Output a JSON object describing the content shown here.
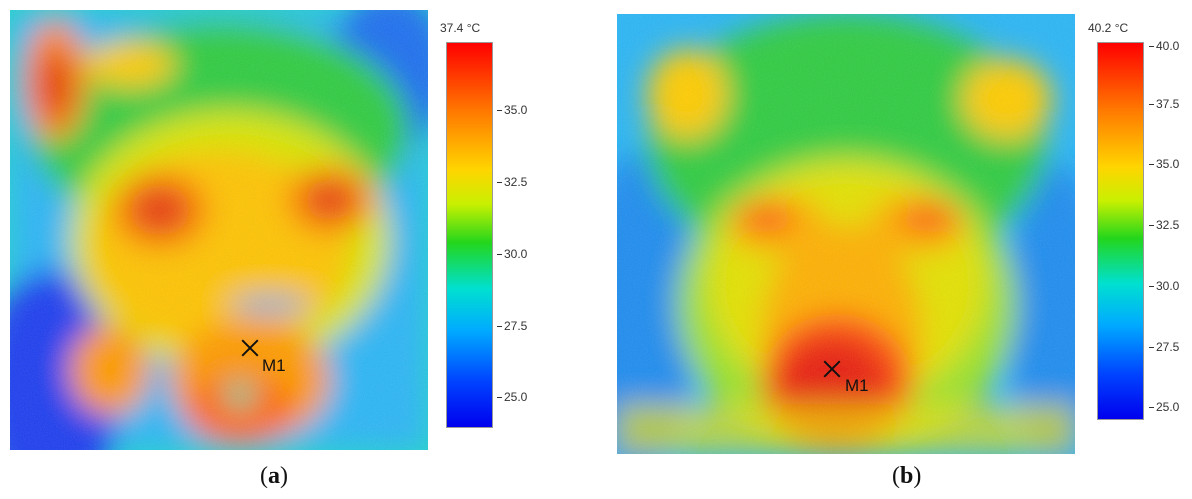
{
  "panels": [
    {
      "id": "a",
      "label_letter": "a",
      "scale_max": "37.4 °C",
      "ticks": [
        "35.0",
        "32.5",
        "30.0",
        "27.5",
        "25.0"
      ],
      "marker": "M1"
    },
    {
      "id": "b",
      "label_letter": "b",
      "scale_max": "40.2 °C",
      "ticks": [
        "40.0",
        "37.5",
        "35.0",
        "32.5",
        "30.0",
        "27.5",
        "25.0"
      ],
      "marker": "M1"
    }
  ],
  "palette": {
    "hot": "#ff0000",
    "warm": "#ffd500",
    "mid": "#23d61c",
    "cool": "#00aaff",
    "cold": "#0000ee"
  }
}
